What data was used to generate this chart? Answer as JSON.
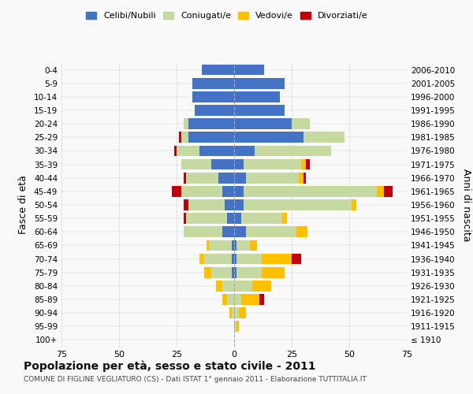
{
  "age_groups": [
    "100+",
    "95-99",
    "90-94",
    "85-89",
    "80-84",
    "75-79",
    "70-74",
    "65-69",
    "60-64",
    "55-59",
    "50-54",
    "45-49",
    "40-44",
    "35-39",
    "30-34",
    "25-29",
    "20-24",
    "15-19",
    "10-14",
    "5-9",
    "0-4"
  ],
  "birth_years": [
    "≤ 1910",
    "1911-1915",
    "1916-1920",
    "1921-1925",
    "1926-1930",
    "1931-1935",
    "1936-1940",
    "1941-1945",
    "1946-1950",
    "1951-1955",
    "1956-1960",
    "1961-1965",
    "1966-1970",
    "1971-1975",
    "1976-1980",
    "1981-1985",
    "1986-1990",
    "1991-1995",
    "1996-2000",
    "2001-2005",
    "2006-2010"
  ],
  "male": {
    "celibi": [
      0,
      0,
      0,
      0,
      0,
      1,
      1,
      1,
      5,
      3,
      4,
      5,
      7,
      10,
      15,
      20,
      20,
      17,
      18,
      18,
      14
    ],
    "coniugati": [
      0,
      0,
      1,
      3,
      5,
      9,
      12,
      10,
      17,
      18,
      16,
      18,
      14,
      13,
      10,
      3,
      2,
      0,
      0,
      0,
      0
    ],
    "vedovi": [
      0,
      0,
      1,
      2,
      3,
      3,
      2,
      1,
      0,
      0,
      0,
      0,
      0,
      0,
      0,
      0,
      0,
      0,
      0,
      0,
      0
    ],
    "divorziati": [
      0,
      0,
      0,
      0,
      0,
      0,
      0,
      0,
      0,
      1,
      2,
      4,
      1,
      0,
      1,
      1,
      0,
      0,
      0,
      0,
      0
    ]
  },
  "female": {
    "nubili": [
      0,
      0,
      0,
      0,
      0,
      1,
      1,
      1,
      5,
      3,
      4,
      4,
      5,
      4,
      9,
      30,
      25,
      22,
      20,
      22,
      13
    ],
    "coniugate": [
      0,
      1,
      2,
      3,
      8,
      11,
      11,
      6,
      22,
      18,
      47,
      58,
      23,
      25,
      33,
      18,
      8,
      0,
      0,
      0,
      0
    ],
    "vedove": [
      0,
      1,
      3,
      8,
      8,
      10,
      13,
      3,
      5,
      2,
      2,
      3,
      2,
      2,
      0,
      0,
      0,
      0,
      0,
      0,
      0
    ],
    "divorziate": [
      0,
      0,
      0,
      2,
      0,
      0,
      4,
      0,
      0,
      0,
      0,
      4,
      1,
      2,
      0,
      0,
      0,
      0,
      0,
      0,
      0
    ]
  },
  "colors": {
    "celibi_nubili": "#4472c4",
    "coniugati": "#c5d9a0",
    "vedovi": "#ffc000",
    "divorziati": "#c0000c"
  },
  "xlim": 75,
  "title": "Popolazione per età, sesso e stato civile - 2011",
  "subtitle": "COMUNE DI FIGLINE VEGLIATURO (CS) - Dati ISTAT 1° gennaio 2011 - Elaborazione TUTTITALIA.IT",
  "ylabel_left": "Fasce di età",
  "ylabel_right": "Anni di nascita",
  "bg_color": "#f9f9f9",
  "grid_color": "#cccccc"
}
